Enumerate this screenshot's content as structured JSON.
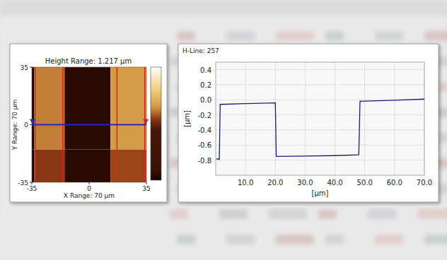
{
  "chart_data": [
    {
      "type": "heatmap",
      "title": "Height Range: 1.217 µm",
      "x_label": "X Range: 70 µm",
      "y_label": "Y Range: 70 µm",
      "xlim": [
        -35,
        35
      ],
      "ylim": [
        -35,
        35
      ],
      "xticks": [
        -35,
        0,
        35
      ],
      "yticks": [
        -35,
        0,
        35
      ],
      "x_edges": [
        -35,
        -33.5,
        -15,
        13,
        35
      ],
      "y_edges": [
        -35,
        -15,
        35
      ],
      "cells": [
        [
          -0.78,
          -0.15,
          -0.75,
          -0.12
        ],
        [
          -0.78,
          -0.05,
          -0.75,
          0.0
        ]
      ],
      "colorbar_range": [
        -0.8,
        0.417
      ],
      "cursors": [
        -33,
        -16,
        17,
        34
      ],
      "profile_y": 0
    },
    {
      "type": "line",
      "title": "H-Line: 257",
      "x_label": "[µm]",
      "y_label": "[µm]",
      "xlim": [
        0,
        70
      ],
      "ylim": [
        -1.0,
        0.5
      ],
      "xticks": [
        {
          "value": 10,
          "label": "10.0"
        },
        {
          "value": 20,
          "label": "20.0"
        },
        {
          "value": 30,
          "label": "30.0"
        },
        {
          "value": 40,
          "label": "40.0"
        },
        {
          "value": 50,
          "label": "50.0"
        },
        {
          "value": 60,
          "label": "60.0"
        },
        {
          "value": 70,
          "label": "70.0"
        }
      ],
      "yticks": [
        0.4,
        0.2,
        {
          "value": 0,
          "label": "0.0"
        },
        -0.2,
        -0.4,
        -0.6,
        -0.8
      ],
      "grid": true,
      "color": "#1c1c80",
      "x": [
        0.2,
        1.2,
        1.5,
        10,
        20,
        20.3,
        30,
        40,
        48,
        48.4,
        60,
        70
      ],
      "values": [
        -0.78,
        -0.79,
        -0.06,
        -0.05,
        -0.04,
        -0.75,
        -0.745,
        -0.74,
        -0.73,
        -0.02,
        -0.005,
        0.01
      ]
    }
  ]
}
